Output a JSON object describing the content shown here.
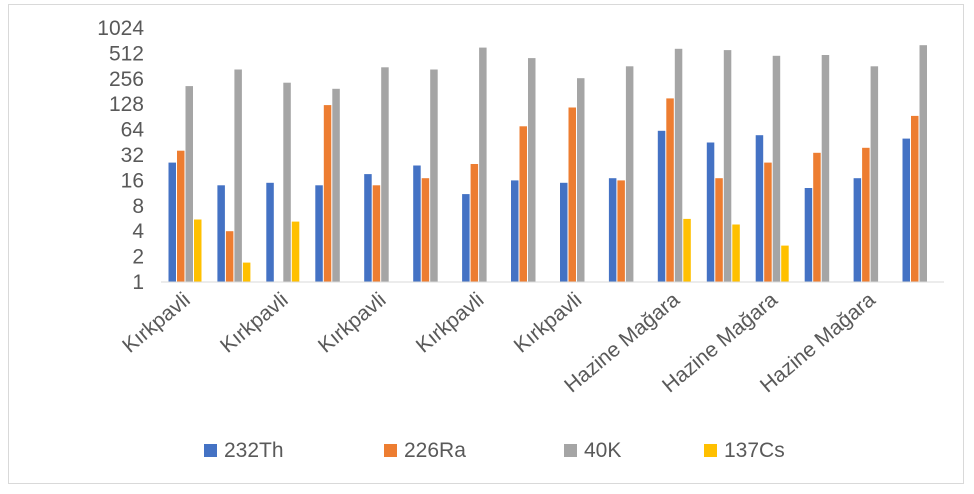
{
  "chart_data": {
    "type": "bar",
    "yscale": "log2",
    "ylim": [
      1,
      1024
    ],
    "yticks": [
      "1",
      "2",
      "4",
      "8",
      "16",
      "32",
      "64",
      "128",
      "256",
      "512",
      "1024"
    ],
    "categories": [
      "Kırkpavli",
      "",
      "Kırkpavli",
      "",
      "Kırkpavli",
      "",
      "Kırkpavli",
      "",
      "Kırkpavli",
      "",
      "Hazine Mağara",
      "",
      "Hazine Mağara",
      "",
      "Hazine Mağara",
      ""
    ],
    "series": [
      {
        "name": "232Th",
        "color": "#4472c4",
        "values": [
          26,
          14,
          15,
          14,
          19,
          24,
          11,
          16,
          15,
          17,
          62,
          45,
          55,
          13,
          17,
          50
        ]
      },
      {
        "name": "226Ra",
        "color": "#ed7d31",
        "values": [
          36,
          4,
          0,
          125,
          14,
          17,
          25,
          70,
          117,
          16,
          150,
          17,
          26,
          34,
          39,
          93
        ]
      },
      {
        "name": "40K",
        "color": "#a5a5a5",
        "values": [
          210,
          330,
          230,
          195,
          350,
          330,
          600,
          450,
          260,
          360,
          580,
          560,
          480,
          490,
          360,
          640
        ]
      },
      {
        "name": "137Cs",
        "color": "#ffc000",
        "values": [
          5.5,
          1.7,
          5.2,
          0,
          0,
          0,
          0,
          0,
          0,
          0,
          5.6,
          4.8,
          2.7,
          0,
          0,
          0
        ]
      }
    ],
    "grid": false,
    "legend_position": "bottom"
  }
}
